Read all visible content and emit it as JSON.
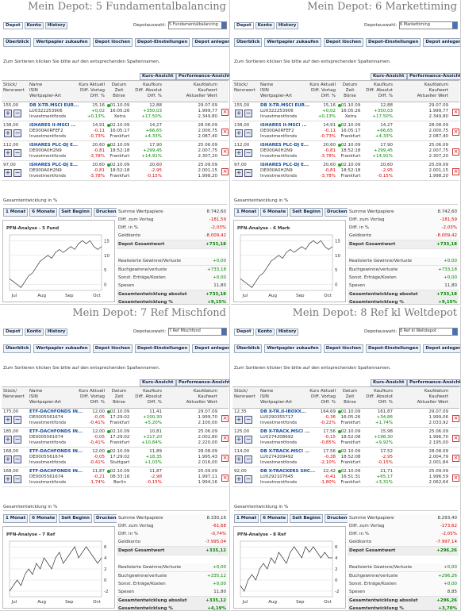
{
  "common": {
    "tabs": [
      "Depot",
      "Konto",
      "History"
    ],
    "depot_label": "Depotauswahl:",
    "nav": [
      "Überblick",
      "Wertpapier zukaufen",
      "Depot löschen",
      "Depot-Einstellungen",
      "Depot anlegen"
    ],
    "sort_hint": "Zum Sortieren klicken Sie bitte auf den entsprechenden Spaltennamen.",
    "view_tabs": [
      "Kurs-Ansicht",
      "Performance-Ansicht"
    ],
    "headers": [
      [
        "Stück/",
        "Nennwert"
      ],
      [
        "Name",
        "ISIN",
        "Wertpapier-Art"
      ],
      [
        "Kurs Aktuell",
        "Diff. Vortag",
        "Diff. %"
      ],
      [
        "Datum",
        "Zeit",
        "Börse"
      ],
      [
        "Kaufkurs",
        "Diff. Absolut",
        "Diff. %"
      ],
      [
        "Kaufdatum",
        "Kaufwert",
        "Aktueller Wert"
      ]
    ],
    "section": "Gesamtentwicklung in %",
    "range_buttons": [
      "1 Monat",
      "6 Monate",
      "Seit Beginn",
      "Drucken"
    ],
    "summary_labels": [
      "Summe Wertpapiere",
      "Diff. zum Vortag",
      "Diff. in %",
      "Geldkonto",
      "Depot Gesamtwert",
      "Realisierte Gewinne/Verluste",
      "Buchgewinne/verluste",
      "Sonst. Erträge/Kosten",
      "Spesen",
      "Gesamtentwicklung absolut",
      "Gesamtentwicklung %"
    ]
  },
  "panels": [
    {
      "title": "Mein Depot: 5 Fundamentalbalancing",
      "select": "5 Fundamentalbalancing",
      "rows": [
        [
          "155,00",
          "DB X-TR.MSCI EUR...",
          "LU0322253906",
          "Investmentfonds",
          "15,16",
          "+0,02",
          "+0,13%",
          "01.10.09",
          "16:05:26",
          "Xetra",
          "12,88",
          "+350,03",
          "+17,50%",
          "29.07.09",
          "1.999,77",
          "2.349,80"
        ],
        [
          "138,00",
          "iSHARES II-MSCI ...",
          "DE000A0RFEF2",
          "Investmentfonds",
          "14,91",
          "-0,11",
          "-0,73%",
          "02.10.09",
          "16:05:17",
          "Frankfurt",
          "14,27",
          "+66,65",
          "+4,33%",
          "28.08.09",
          "2.000,75",
          "2.087,40"
        ],
        [
          "112,00",
          "iSHARES PLC-DJ E...",
          "DE000A0H2N9",
          "Investmentfonds",
          "20,60",
          "-0,81",
          "-3,78%",
          "02.10.09",
          "18:52:18",
          "Frankfurt",
          "17,90",
          "+299,45",
          "+14,91%",
          "25.06.09",
          "2.007,75",
          "2.307,20"
        ],
        [
          "97,00",
          "iSHARES PLC-DJ E...",
          "DE000A0H2N9",
          "Investmentfonds",
          "20,60",
          "-0,81",
          "-3,78%",
          "02.10.09",
          "18:52:18",
          "Frankfurt",
          "20,60",
          "-2,95",
          "-0,15%",
          "25.09.09",
          "2.001,15",
          "1.998,20"
        ]
      ],
      "chart": {
        "type": "line",
        "title": "PFN-Analyse - 5 Fund",
        "x_labels": [
          "Jul",
          "Aug",
          "Sep",
          "Oct"
        ],
        "ylim": [
          -2,
          17
        ],
        "yticks": [
          0,
          5,
          10,
          15
        ],
        "values": [
          2,
          1,
          0,
          -1,
          1,
          3,
          4,
          6,
          8,
          9,
          10,
          9,
          11,
          12,
          11,
          12,
          13,
          12,
          14,
          15,
          14,
          15,
          13,
          12,
          13
        ]
      },
      "summary": [
        "8.742,60",
        "-181,59",
        "-2,03%",
        "-8.009,42",
        "+733,18",
        "+0,00",
        "+733,18",
        "+0,00",
        "11,80",
        "+733,18",
        "+9,15%"
      ]
    },
    {
      "title": "Mein Depot: 6 Markettiming",
      "select": "6 Markettiming",
      "rows": [
        [
          "155,00",
          "DB X-TR.MSCI EUR...",
          "LU0322253906",
          "Investmentfonds",
          "15,16",
          "+0,02",
          "+0,13%",
          "01.10.09",
          "16:05:26",
          "Xetra",
          "12,88",
          "+350,03",
          "+17,50%",
          "29.07.09",
          "1.999,77",
          "2.349,80"
        ],
        [
          "138,00",
          "iSHARES II-MSCI ...",
          "DE000A0RFEF2",
          "Investmentfonds",
          "14,91",
          "-0,11",
          "-0,73%",
          "02.10.09",
          "16:05:17",
          "Frankfurt",
          "14,27",
          "+66,65",
          "+4,33%",
          "28.08.09",
          "2.000,75",
          "2.087,40"
        ],
        [
          "112,00",
          "iSHARES PLC-DJ E...",
          "DE000A0H2N9",
          "Investmentfonds",
          "20,60",
          "-0,81",
          "-3,78%",
          "02.10.09",
          "18:52:18",
          "Frankfurt",
          "17,90",
          "+299,45",
          "+14,91%",
          "25.06.09",
          "2.007,75",
          "2.307,20"
        ],
        [
          "97,00",
          "iSHARES PLC-DJ E...",
          "DE000A0H2N9",
          "Investmentfonds",
          "20,60",
          "-0,81",
          "-3,78%",
          "02.10.09",
          "18:52:18",
          "Frankfurt",
          "20,60",
          "-2,95",
          "-0,15%",
          "25.09.09",
          "2.001,15",
          "1.998,20"
        ]
      ],
      "chart": {
        "type": "line",
        "title": "PFN-Analyse - 6 Mark",
        "x_labels": [
          "Jul",
          "Aug",
          "Sep",
          "Oct"
        ],
        "ylim": [
          -2,
          17
        ],
        "yticks": [
          0,
          5,
          10,
          15
        ],
        "values": [
          2,
          1,
          0,
          -1,
          1,
          3,
          4,
          6,
          8,
          9,
          10,
          9,
          11,
          12,
          11,
          12,
          13,
          12,
          14,
          15,
          14,
          15,
          13,
          12,
          13
        ]
      },
      "summary": [
        "8.742,60",
        "-181,59",
        "-2,03%",
        "-8.009,42",
        "+733,18",
        "+0,00",
        "+733,18",
        "+0,00",
        "11,80",
        "+733,18",
        "+9,15%"
      ]
    },
    {
      "title": "Mein Depot: 7 Ref Mischfond",
      "select": "7 Ref Mischfond",
      "rows": [
        [
          "175,00",
          "ETF-DACHFONDS IN...",
          "DE0005561674",
          "Investmentfonds",
          "12,00",
          "-0,05",
          "-0,41%",
          "02.10.09",
          "17:29:02",
          "Frankfurt",
          "11,41",
          "+100,30",
          "+5,20%",
          "29.07.09",
          "1.999,70",
          "2.100,00"
        ],
        [
          "185,00",
          "ETF-DACHFONDS IN...",
          "DE0005561674",
          "Investmentfonds",
          "12,00",
          "-0,05",
          "-0,41%",
          "02.10.09",
          "17:29:02",
          "Frankfurt",
          "10,81",
          "+217,20",
          "+10,84%",
          "25.06.09",
          "2.002,80",
          "2.220,00"
        ],
        [
          "168,00",
          "ETF-DACHFONDS IN...",
          "DE0005561674",
          "Investmentfonds",
          "12,00",
          "-0,05",
          "-0,41%",
          "02.10.09",
          "17:29:02",
          "Stuttgart",
          "11,89",
          "+18,35",
          "+1,03%",
          "28.08.09",
          "1.995,43",
          "2.016,00"
        ],
        [
          "168,00",
          "ETF-DACHFONDS IN...",
          "DE0005561674",
          "Investmentfonds",
          "11,87",
          "-0,21",
          "-1,74%",
          "02.10.09",
          "08:33:16",
          "Berlin",
          "11,87",
          "-2,98",
          "-0,15%",
          "25.09.09",
          "1.997,11",
          "1.994,16"
        ]
      ],
      "chart": {
        "type": "line",
        "title": "PFN-Analyse - 7 Ref",
        "x_labels": [
          "Jul",
          "Aug",
          "Sep",
          "Oct"
        ],
        "ylim": [
          -3,
          7
        ],
        "yticks": [
          -2,
          0,
          2,
          4,
          6
        ],
        "values": [
          -2,
          -1,
          0,
          -1,
          1,
          2,
          1,
          3,
          2,
          4,
          3,
          2,
          4,
          5,
          3,
          4,
          5,
          6,
          4,
          5,
          6,
          5,
          4,
          3,
          4
        ]
      },
      "summary": [
        "8.330,16",
        "-61,68",
        "-0,74%",
        "-7.995,04",
        "+335,12",
        "+0,00",
        "+335,12",
        "+0,00",
        "11,80",
        "+335,12",
        "+4,19%"
      ]
    },
    {
      "title": "Mein Depot: 8 Ref kl Weltdepot",
      "select": "8 Ref kl Weltdepot",
      "rows": [
        [
          "12,35",
          "DB X-TR.II-IBOXX...",
          "LU0290355717",
          "Investmentfonds",
          "164,69",
          "-0,36",
          "-0,22%",
          "01.10.09",
          "16:05:26",
          "Frankfurt",
          "161,87",
          "+34,86",
          "+1,74%",
          "29.07.09",
          "1.999,06",
          "2.033,92"
        ],
        [
          "125,00",
          "DB X-TRACK.MSCI ...",
          "LU0274208692",
          "Investmentfonds",
          "17,56",
          "-0,15",
          "-0,85%",
          "02.10.09",
          "18:52:08",
          "Frankfurt",
          "15,98",
          "+198,30",
          "+9,92%",
          "25.06.09",
          "1.996,70",
          "2.195,00"
        ],
        [
          "114,00",
          "DB X-TRACK.MSCI ...",
          "LU0274209492",
          "Investmentfonds",
          "17,56",
          "-0,38",
          "-2,10%",
          "02.10.09",
          "18:52:08",
          "Frankfurt",
          "17,52",
          "-2,95",
          "-0,15%",
          "28.08.09",
          "2.004,79",
          "2.001,84"
        ],
        [
          "92,00",
          "DB X-TRACKERS SHC...",
          "LU0292107645",
          "Investmentfonds",
          "22,42",
          "-0,41",
          "-1,80%",
          "02.10.09",
          "16:51:31",
          "Frankfurt",
          "21,71",
          "+65,17",
          "+3,31%",
          "25.09.09",
          "1.996,59",
          "2.062,64"
        ]
      ],
      "chart": {
        "type": "line",
        "title": "PFN-Analyse - 8 Ref",
        "x_labels": [
          "Jul",
          "Aug",
          "Sep",
          "Oct"
        ],
        "ylim": [
          -3,
          7
        ],
        "yticks": [
          -2,
          0,
          2,
          4,
          6
        ],
        "values": [
          -1,
          -2,
          0,
          1,
          0,
          2,
          3,
          2,
          4,
          3,
          5,
          4,
          3,
          5,
          6,
          5,
          4,
          6,
          5,
          6,
          5,
          4,
          5,
          4,
          4
        ]
      },
      "summary": [
        "8.293,40",
        "-173,62",
        "-2,05%",
        "-7.997,14",
        "+296,26",
        "+0,00",
        "+296,26",
        "+0,00",
        "8,85",
        "+296,26",
        "+3,70%"
      ]
    }
  ]
}
